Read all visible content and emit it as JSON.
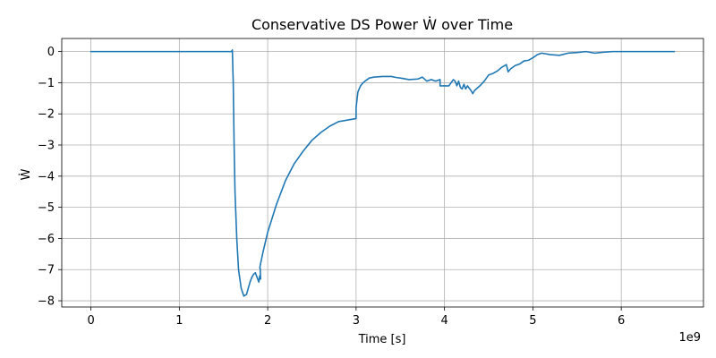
{
  "chart_data": {
    "type": "line",
    "title": "Conservative DS Power Ẇ over Time",
    "xlabel": "Time [s]",
    "ylabel": "Ẇ",
    "x_offset_label": "1e9",
    "xlim": [
      -0.33,
      6.93
    ],
    "ylim": [
      -8.2,
      0.42
    ],
    "x_ticks": [
      0,
      1,
      2,
      3,
      4,
      5,
      6
    ],
    "y_ticks": [
      0,
      -1,
      -2,
      -3,
      -4,
      -5,
      -6,
      -7,
      -8
    ],
    "grid": true,
    "series": [
      {
        "color": "#1f77b4",
        "x": [
          0,
          1.0,
          1.59,
          1.6,
          1.61,
          1.62,
          1.63,
          1.65,
          1.67,
          1.7,
          1.73,
          1.76,
          1.78,
          1.8,
          1.82,
          1.84,
          1.86,
          1.88,
          1.9,
          1.91,
          1.915,
          1.92,
          1.915,
          1.91,
          1.92,
          1.95,
          2.0,
          2.1,
          2.2,
          2.3,
          2.4,
          2.5,
          2.6,
          2.7,
          2.8,
          2.9,
          3.0,
          3.0,
          3.02,
          3.05,
          3.08,
          3.1,
          3.15,
          3.2,
          3.3,
          3.4,
          3.45,
          3.5,
          3.6,
          3.7,
          3.75,
          3.8,
          3.85,
          3.9,
          3.95,
          3.95,
          4.0,
          4.05,
          4.1,
          4.12,
          4.14,
          4.16,
          4.18,
          4.2,
          4.22,
          4.24,
          4.26,
          4.3,
          4.32,
          4.34,
          4.36,
          4.38,
          4.4,
          4.45,
          4.5,
          4.55,
          4.6,
          4.65,
          4.7,
          4.72,
          4.75,
          4.8,
          4.85,
          4.9,
          4.95,
          5.0,
          5.05,
          5.1,
          5.2,
          5.3,
          5.4,
          5.5,
          5.6,
          5.7,
          5.8,
          5.9,
          6.0,
          6.1,
          6.2,
          6.3,
          6.4,
          6.5,
          6.6
        ],
        "y": [
          0,
          0,
          0,
          0.05,
          -1.0,
          -3.0,
          -4.5,
          -6.0,
          -7.0,
          -7.6,
          -7.85,
          -7.8,
          -7.6,
          -7.4,
          -7.25,
          -7.15,
          -7.1,
          -7.25,
          -7.4,
          -7.2,
          -7.3,
          -7.3,
          -6.95,
          -6.95,
          -6.8,
          -6.4,
          -5.8,
          -4.9,
          -4.15,
          -3.6,
          -3.2,
          -2.85,
          -2.6,
          -2.4,
          -2.25,
          -2.2,
          -2.15,
          -1.8,
          -1.3,
          -1.1,
          -1.0,
          -0.95,
          -0.85,
          -0.82,
          -0.8,
          -0.8,
          -0.83,
          -0.85,
          -0.9,
          -0.88,
          -0.82,
          -0.95,
          -0.9,
          -0.95,
          -0.9,
          -1.1,
          -1.1,
          -1.1,
          -0.9,
          -0.95,
          -1.1,
          -0.95,
          -1.15,
          -1.2,
          -1.05,
          -1.2,
          -1.1,
          -1.25,
          -1.35,
          -1.25,
          -1.2,
          -1.15,
          -1.1,
          -0.95,
          -0.75,
          -0.7,
          -0.62,
          -0.5,
          -0.42,
          -0.65,
          -0.55,
          -0.45,
          -0.4,
          -0.3,
          -0.28,
          -0.2,
          -0.1,
          -0.05,
          -0.1,
          -0.12,
          -0.05,
          -0.03,
          0.0,
          -0.05,
          -0.02,
          0.0,
          0.0,
          0.0,
          0.0,
          0.0,
          0.0,
          0.0,
          0.0
        ]
      }
    ]
  }
}
